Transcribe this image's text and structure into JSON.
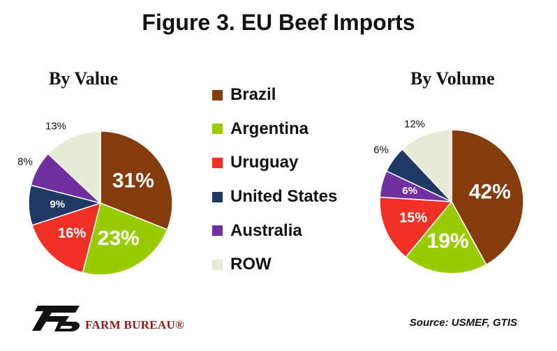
{
  "title": "Figure 3. EU Beef Imports",
  "source": "Source: USMEF, GTIS",
  "brand": "FARM BUREAU®",
  "colors": {
    "Brazil": "#843c0c",
    "Argentina": "#99cc00",
    "Uruguay": "#ee3124",
    "United States": "#1f3864",
    "Australia": "#7030a0",
    "ROW": "#e6ead6"
  },
  "chart_data": {
    "type": "pie",
    "legend": [
      "Brazil",
      "Argentina",
      "Uruguay",
      "United States",
      "Australia",
      "ROW"
    ],
    "charts": [
      {
        "title": "By Value",
        "slices": [
          {
            "label": "Brazil",
            "value": 31,
            "text": "31%"
          },
          {
            "label": "Argentina",
            "value": 23,
            "text": "23%"
          },
          {
            "label": "Uruguay",
            "value": 16,
            "text": "16%"
          },
          {
            "label": "United States",
            "value": 9,
            "text": "9%"
          },
          {
            "label": "Australia",
            "value": 8,
            "text": "8%"
          },
          {
            "label": "ROW",
            "value": 13,
            "text": "13%"
          }
        ]
      },
      {
        "title": "By Volume",
        "slices": [
          {
            "label": "Brazil",
            "value": 42,
            "text": "42%"
          },
          {
            "label": "Argentina",
            "value": 19,
            "text": "19%"
          },
          {
            "label": "Uruguay",
            "value": 15,
            "text": "15%"
          },
          {
            "label": "Australia",
            "value": 6,
            "text": "6%"
          },
          {
            "label": "United States",
            "value": 6,
            "text": "6%"
          },
          {
            "label": "ROW",
            "value": 12,
            "text": "12%"
          }
        ]
      }
    ]
  }
}
